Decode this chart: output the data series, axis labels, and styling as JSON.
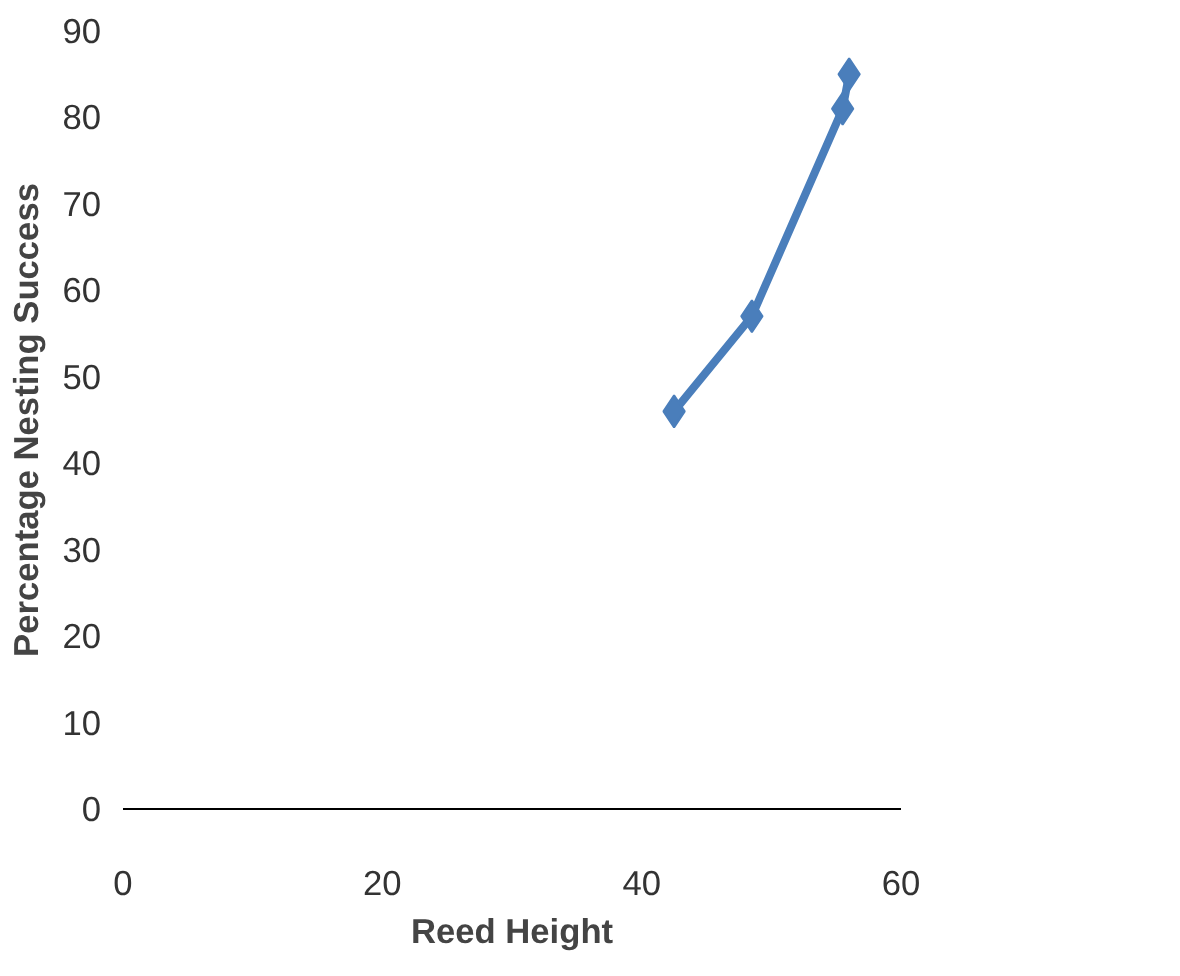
{
  "chart_data": {
    "type": "line",
    "xlabel": "Reed Height",
    "ylabel": "Percentage Nesting Success",
    "x": [
      42.5,
      48.5,
      55.5,
      56
    ],
    "series": [
      {
        "color": "#4a7ebb",
        "values": [
          46,
          57,
          81,
          85
        ]
      }
    ],
    "xlim": [
      0,
      60
    ],
    "xticks": [
      0,
      20,
      40,
      60
    ],
    "ylim": [
      0,
      90
    ],
    "yticks": [
      0,
      10,
      20,
      30,
      40,
      50,
      60,
      70,
      80,
      90
    ],
    "marker": "diamond",
    "line_style": "solid",
    "grid": false
  }
}
